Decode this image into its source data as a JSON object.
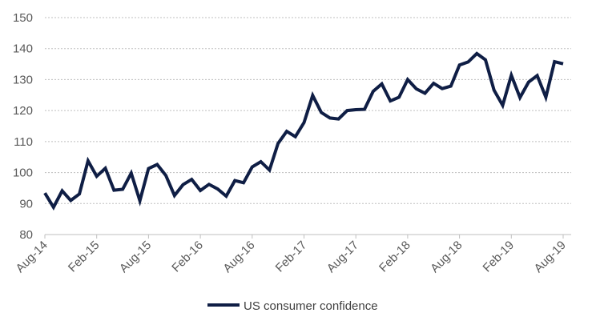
{
  "chart_data": {
    "type": "line",
    "title": "",
    "xlabel": "",
    "ylabel": "",
    "ylim": [
      80,
      150
    ],
    "yticks": [
      80,
      90,
      100,
      110,
      120,
      130,
      140,
      150
    ],
    "grid": true,
    "legend_position": "bottom",
    "x_tick_labels": [
      "Aug-14",
      "Feb-15",
      "Aug-15",
      "Feb-16",
      "Aug-16",
      "Feb-17",
      "Aug-17",
      "Feb-18",
      "Aug-18",
      "Feb-19",
      "Aug-19"
    ],
    "x_start": "Aug-14",
    "x_frequency": "monthly",
    "series": [
      {
        "name": "US consumer confidence",
        "color": "#0f1e45",
        "values": [
          93.4,
          88.8,
          94.1,
          91.0,
          93.1,
          103.8,
          98.8,
          101.4,
          94.3,
          94.6,
          99.8,
          90.9,
          101.3,
          102.6,
          99.1,
          92.6,
          96.1,
          97.8,
          94.2,
          96.2,
          94.7,
          92.4,
          97.4,
          96.7,
          101.8,
          103.5,
          100.8,
          109.4,
          113.3,
          111.6,
          116.1,
          124.9,
          119.4,
          117.6,
          117.3,
          120.0,
          120.3,
          120.4,
          126.2,
          128.6,
          123.1,
          124.3,
          130.0,
          127.0,
          125.6,
          128.8,
          127.1,
          127.9,
          134.7,
          135.7,
          138.4,
          136.4,
          126.6,
          121.7,
          131.4,
          124.2,
          129.2,
          131.3,
          124.3,
          135.8,
          135.1
        ]
      }
    ]
  }
}
